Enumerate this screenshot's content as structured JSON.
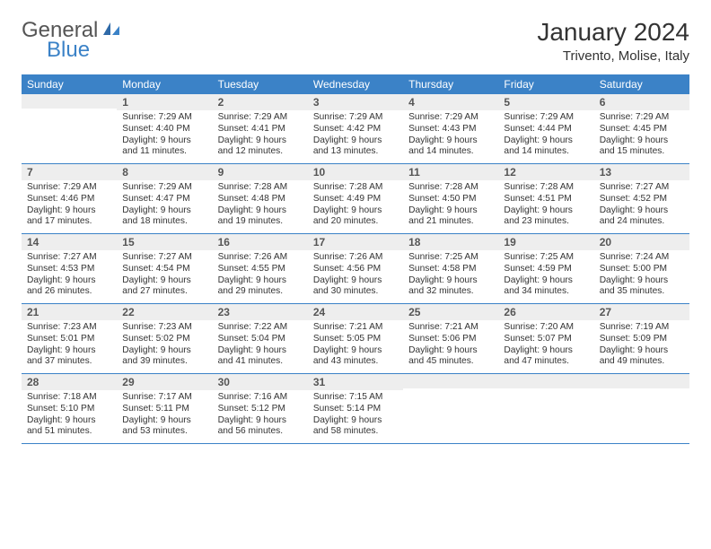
{
  "brand": {
    "part1": "General",
    "part2": "Blue"
  },
  "title": "January 2024",
  "location": "Trivento, Molise, Italy",
  "colors": {
    "header_bg": "#3b82c7",
    "header_text": "#ffffff",
    "daynum_bg": "#eeeeee",
    "row_border": "#3b82c7",
    "body_text": "#333333",
    "page_bg": "#ffffff"
  },
  "typography": {
    "title_fontsize": 28,
    "location_fontsize": 15,
    "dayhead_fontsize": 12,
    "daynum_fontsize": 12,
    "cell_fontsize": 10.2
  },
  "day_headers": [
    "Sunday",
    "Monday",
    "Tuesday",
    "Wednesday",
    "Thursday",
    "Friday",
    "Saturday"
  ],
  "weeks": [
    [
      {
        "num": "",
        "sunrise": "",
        "sunset": "",
        "daylight": ""
      },
      {
        "num": "1",
        "sunrise": "Sunrise: 7:29 AM",
        "sunset": "Sunset: 4:40 PM",
        "daylight": "Daylight: 9 hours and 11 minutes."
      },
      {
        "num": "2",
        "sunrise": "Sunrise: 7:29 AM",
        "sunset": "Sunset: 4:41 PM",
        "daylight": "Daylight: 9 hours and 12 minutes."
      },
      {
        "num": "3",
        "sunrise": "Sunrise: 7:29 AM",
        "sunset": "Sunset: 4:42 PM",
        "daylight": "Daylight: 9 hours and 13 minutes."
      },
      {
        "num": "4",
        "sunrise": "Sunrise: 7:29 AM",
        "sunset": "Sunset: 4:43 PM",
        "daylight": "Daylight: 9 hours and 14 minutes."
      },
      {
        "num": "5",
        "sunrise": "Sunrise: 7:29 AM",
        "sunset": "Sunset: 4:44 PM",
        "daylight": "Daylight: 9 hours and 14 minutes."
      },
      {
        "num": "6",
        "sunrise": "Sunrise: 7:29 AM",
        "sunset": "Sunset: 4:45 PM",
        "daylight": "Daylight: 9 hours and 15 minutes."
      }
    ],
    [
      {
        "num": "7",
        "sunrise": "Sunrise: 7:29 AM",
        "sunset": "Sunset: 4:46 PM",
        "daylight": "Daylight: 9 hours and 17 minutes."
      },
      {
        "num": "8",
        "sunrise": "Sunrise: 7:29 AM",
        "sunset": "Sunset: 4:47 PM",
        "daylight": "Daylight: 9 hours and 18 minutes."
      },
      {
        "num": "9",
        "sunrise": "Sunrise: 7:28 AM",
        "sunset": "Sunset: 4:48 PM",
        "daylight": "Daylight: 9 hours and 19 minutes."
      },
      {
        "num": "10",
        "sunrise": "Sunrise: 7:28 AM",
        "sunset": "Sunset: 4:49 PM",
        "daylight": "Daylight: 9 hours and 20 minutes."
      },
      {
        "num": "11",
        "sunrise": "Sunrise: 7:28 AM",
        "sunset": "Sunset: 4:50 PM",
        "daylight": "Daylight: 9 hours and 21 minutes."
      },
      {
        "num": "12",
        "sunrise": "Sunrise: 7:28 AM",
        "sunset": "Sunset: 4:51 PM",
        "daylight": "Daylight: 9 hours and 23 minutes."
      },
      {
        "num": "13",
        "sunrise": "Sunrise: 7:27 AM",
        "sunset": "Sunset: 4:52 PM",
        "daylight": "Daylight: 9 hours and 24 minutes."
      }
    ],
    [
      {
        "num": "14",
        "sunrise": "Sunrise: 7:27 AM",
        "sunset": "Sunset: 4:53 PM",
        "daylight": "Daylight: 9 hours and 26 minutes."
      },
      {
        "num": "15",
        "sunrise": "Sunrise: 7:27 AM",
        "sunset": "Sunset: 4:54 PM",
        "daylight": "Daylight: 9 hours and 27 minutes."
      },
      {
        "num": "16",
        "sunrise": "Sunrise: 7:26 AM",
        "sunset": "Sunset: 4:55 PM",
        "daylight": "Daylight: 9 hours and 29 minutes."
      },
      {
        "num": "17",
        "sunrise": "Sunrise: 7:26 AM",
        "sunset": "Sunset: 4:56 PM",
        "daylight": "Daylight: 9 hours and 30 minutes."
      },
      {
        "num": "18",
        "sunrise": "Sunrise: 7:25 AM",
        "sunset": "Sunset: 4:58 PM",
        "daylight": "Daylight: 9 hours and 32 minutes."
      },
      {
        "num": "19",
        "sunrise": "Sunrise: 7:25 AM",
        "sunset": "Sunset: 4:59 PM",
        "daylight": "Daylight: 9 hours and 34 minutes."
      },
      {
        "num": "20",
        "sunrise": "Sunrise: 7:24 AM",
        "sunset": "Sunset: 5:00 PM",
        "daylight": "Daylight: 9 hours and 35 minutes."
      }
    ],
    [
      {
        "num": "21",
        "sunrise": "Sunrise: 7:23 AM",
        "sunset": "Sunset: 5:01 PM",
        "daylight": "Daylight: 9 hours and 37 minutes."
      },
      {
        "num": "22",
        "sunrise": "Sunrise: 7:23 AM",
        "sunset": "Sunset: 5:02 PM",
        "daylight": "Daylight: 9 hours and 39 minutes."
      },
      {
        "num": "23",
        "sunrise": "Sunrise: 7:22 AM",
        "sunset": "Sunset: 5:04 PM",
        "daylight": "Daylight: 9 hours and 41 minutes."
      },
      {
        "num": "24",
        "sunrise": "Sunrise: 7:21 AM",
        "sunset": "Sunset: 5:05 PM",
        "daylight": "Daylight: 9 hours and 43 minutes."
      },
      {
        "num": "25",
        "sunrise": "Sunrise: 7:21 AM",
        "sunset": "Sunset: 5:06 PM",
        "daylight": "Daylight: 9 hours and 45 minutes."
      },
      {
        "num": "26",
        "sunrise": "Sunrise: 7:20 AM",
        "sunset": "Sunset: 5:07 PM",
        "daylight": "Daylight: 9 hours and 47 minutes."
      },
      {
        "num": "27",
        "sunrise": "Sunrise: 7:19 AM",
        "sunset": "Sunset: 5:09 PM",
        "daylight": "Daylight: 9 hours and 49 minutes."
      }
    ],
    [
      {
        "num": "28",
        "sunrise": "Sunrise: 7:18 AM",
        "sunset": "Sunset: 5:10 PM",
        "daylight": "Daylight: 9 hours and 51 minutes."
      },
      {
        "num": "29",
        "sunrise": "Sunrise: 7:17 AM",
        "sunset": "Sunset: 5:11 PM",
        "daylight": "Daylight: 9 hours and 53 minutes."
      },
      {
        "num": "30",
        "sunrise": "Sunrise: 7:16 AM",
        "sunset": "Sunset: 5:12 PM",
        "daylight": "Daylight: 9 hours and 56 minutes."
      },
      {
        "num": "31",
        "sunrise": "Sunrise: 7:15 AM",
        "sunset": "Sunset: 5:14 PM",
        "daylight": "Daylight: 9 hours and 58 minutes."
      },
      {
        "num": "",
        "sunrise": "",
        "sunset": "",
        "daylight": ""
      },
      {
        "num": "",
        "sunrise": "",
        "sunset": "",
        "daylight": ""
      },
      {
        "num": "",
        "sunrise": "",
        "sunset": "",
        "daylight": ""
      }
    ]
  ]
}
